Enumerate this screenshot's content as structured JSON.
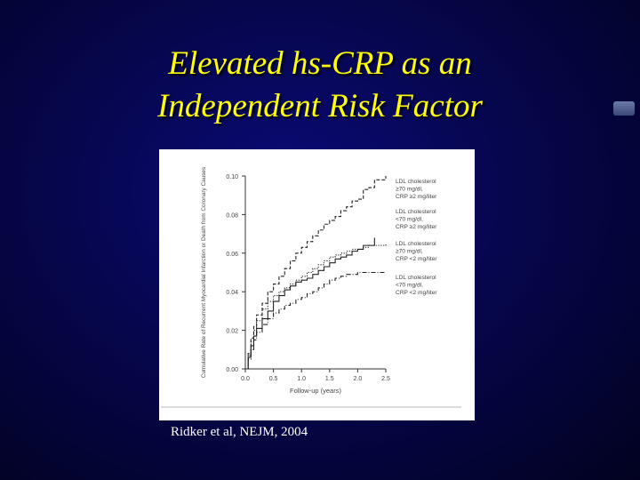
{
  "slide": {
    "title_line1": "Elevated hs-CRP as an",
    "title_line2": "Independent Risk Factor",
    "citation": "Ridker et al, NEJM, 2004",
    "colors": {
      "title": "#ffff00",
      "background": "#06064e",
      "citation": "#ffffff"
    }
  },
  "chart_data": {
    "type": "line",
    "title": "",
    "xlabel": "Follow-up (years)",
    "ylabel": "Cumulative Rate of Recurrent Myocardial Infarction or Death from Coronary Causes",
    "xlim": [
      0,
      2.5
    ],
    "ylim": [
      0,
      0.1
    ],
    "xticks": [
      "0.0",
      "0.5",
      "1.0",
      "1.5",
      "2.0",
      "2.5"
    ],
    "yticks": [
      "0.00",
      "0.02",
      "0.04",
      "0.06",
      "0.08",
      "0.10"
    ],
    "grid": false,
    "legend": "right",
    "series": [
      {
        "name": "LDL cholesterol ≥70 mg/dl, CRP ≥2 mg/liter",
        "label_lines": [
          "LDL cholesterol",
          "≥70 mg/dl,",
          "CRP ≥2 mg/liter"
        ],
        "style": "dashed",
        "x": [
          0.0,
          0.05,
          0.1,
          0.15,
          0.2,
          0.3,
          0.4,
          0.5,
          0.6,
          0.7,
          0.8,
          0.9,
          1.0,
          1.1,
          1.2,
          1.3,
          1.4,
          1.5,
          1.6,
          1.7,
          1.8,
          1.9,
          2.0,
          2.1,
          2.2,
          2.3,
          2.5
        ],
        "values": [
          0.0,
          0.008,
          0.016,
          0.022,
          0.028,
          0.034,
          0.04,
          0.044,
          0.048,
          0.052,
          0.056,
          0.06,
          0.063,
          0.066,
          0.069,
          0.072,
          0.075,
          0.077,
          0.079,
          0.082,
          0.084,
          0.087,
          0.088,
          0.093,
          0.094,
          0.098,
          0.1
        ]
      },
      {
        "name": "LDL cholesterol <70 mg/dl, CRP ≥2 mg/liter",
        "label_lines": [
          "LDL cholesterol",
          "<70 mg/dl,",
          "CRP ≥2 mg/liter"
        ],
        "style": "solid",
        "x": [
          0.0,
          0.05,
          0.1,
          0.15,
          0.2,
          0.3,
          0.4,
          0.5,
          0.6,
          0.7,
          0.8,
          0.9,
          1.0,
          1.1,
          1.2,
          1.3,
          1.4,
          1.5,
          1.6,
          1.7,
          1.8,
          1.9,
          2.0,
          2.1,
          2.2,
          2.3
        ],
        "values": [
          0.0,
          0.006,
          0.012,
          0.017,
          0.021,
          0.026,
          0.03,
          0.035,
          0.038,
          0.041,
          0.043,
          0.045,
          0.046,
          0.047,
          0.049,
          0.051,
          0.053,
          0.055,
          0.057,
          0.058,
          0.059,
          0.061,
          0.062,
          0.064,
          0.064,
          0.068
        ]
      },
      {
        "name": "LDL cholesterol ≥70 mg/dl, CRP <2 mg/liter",
        "label_lines": [
          "LDL cholesterol",
          "≥70 mg/dl,",
          "CRP <2 mg/liter"
        ],
        "style": "dotted",
        "x": [
          0.0,
          0.05,
          0.1,
          0.15,
          0.2,
          0.3,
          0.4,
          0.5,
          0.6,
          0.7,
          0.8,
          0.9,
          1.0,
          1.1,
          1.2,
          1.3,
          1.4,
          1.5,
          1.6,
          1.7,
          1.8,
          1.9,
          2.0,
          2.1,
          2.2,
          2.3,
          2.5
        ],
        "values": [
          0.0,
          0.007,
          0.014,
          0.02,
          0.025,
          0.031,
          0.035,
          0.038,
          0.04,
          0.042,
          0.044,
          0.046,
          0.048,
          0.05,
          0.052,
          0.054,
          0.056,
          0.058,
          0.059,
          0.06,
          0.061,
          0.062,
          0.062,
          0.063,
          0.064,
          0.064,
          0.065
        ]
      },
      {
        "name": "LDL cholesterol <70 mg/dl, CRP <2 mg/liter",
        "label_lines": [
          "LDL cholesterol",
          "<70 mg/dl,",
          "CRP <2 mg/liter"
        ],
        "style": "dashdot",
        "x": [
          0.0,
          0.05,
          0.1,
          0.15,
          0.2,
          0.3,
          0.4,
          0.5,
          0.6,
          0.7,
          0.8,
          0.9,
          1.0,
          1.1,
          1.2,
          1.3,
          1.4,
          1.5,
          1.6,
          1.7,
          1.8,
          1.9,
          2.0,
          2.1,
          2.2,
          2.3,
          2.5
        ],
        "values": [
          0.0,
          0.005,
          0.01,
          0.015,
          0.019,
          0.023,
          0.026,
          0.029,
          0.031,
          0.033,
          0.034,
          0.036,
          0.037,
          0.039,
          0.04,
          0.042,
          0.044,
          0.046,
          0.047,
          0.048,
          0.049,
          0.049,
          0.05,
          0.05,
          0.05,
          0.05,
          0.05
        ]
      }
    ]
  }
}
